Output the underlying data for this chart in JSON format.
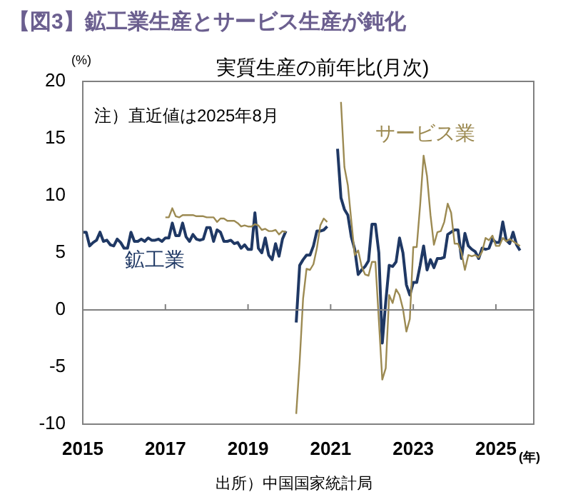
{
  "chart_data": {
    "type": "line",
    "title": "【図3】鉱工業生産とサービス生産が鈍化",
    "subtitle": "実質生産の前年比(月次)",
    "ylabel": "(%)",
    "xlabel": "(年)",
    "annotations": [
      "注）直近値は2025年8月",
      "出所）中国国家統計局"
    ],
    "x": [
      "2015-01",
      "2015-02",
      "2015-03",
      "2015-04",
      "2015-05",
      "2015-06",
      "2015-07",
      "2015-08",
      "2015-09",
      "2015-10",
      "2015-11",
      "2015-12",
      "2016-01",
      "2016-02",
      "2016-03",
      "2016-04",
      "2016-05",
      "2016-06",
      "2016-07",
      "2016-08",
      "2016-09",
      "2016-10",
      "2016-11",
      "2016-12",
      "2017-01",
      "2017-02",
      "2017-03",
      "2017-04",
      "2017-05",
      "2017-06",
      "2017-07",
      "2017-08",
      "2017-09",
      "2017-10",
      "2017-11",
      "2017-12",
      "2018-01",
      "2018-02",
      "2018-03",
      "2018-04",
      "2018-05",
      "2018-06",
      "2018-07",
      "2018-08",
      "2018-09",
      "2018-10",
      "2018-11",
      "2018-12",
      "2019-01",
      "2019-02",
      "2019-03",
      "2019-04",
      "2019-05",
      "2019-06",
      "2019-07",
      "2019-08",
      "2019-09",
      "2019-10",
      "2019-11",
      "2019-12",
      "2020-01",
      "2020-02",
      "2020-03",
      "2020-04",
      "2020-05",
      "2020-06",
      "2020-07",
      "2020-08",
      "2020-09",
      "2020-10",
      "2020-11",
      "2020-12",
      "2021-01",
      "2021-02",
      "2021-03",
      "2021-04",
      "2021-05",
      "2021-06",
      "2021-07",
      "2021-08",
      "2021-09",
      "2021-10",
      "2021-11",
      "2021-12",
      "2022-01",
      "2022-02",
      "2022-03",
      "2022-04",
      "2022-05",
      "2022-06",
      "2022-07",
      "2022-08",
      "2022-09",
      "2022-10",
      "2022-11",
      "2022-12",
      "2023-01",
      "2023-02",
      "2023-03",
      "2023-04",
      "2023-05",
      "2023-06",
      "2023-07",
      "2023-08",
      "2023-09",
      "2023-10",
      "2023-11",
      "2023-12",
      "2024-01",
      "2024-02",
      "2024-03",
      "2024-04",
      "2024-05",
      "2024-06",
      "2024-07",
      "2024-08",
      "2024-09",
      "2024-10",
      "2024-11",
      "2024-12",
      "2025-01",
      "2025-02",
      "2025-03",
      "2025-04",
      "2025-05",
      "2025-06",
      "2025-07",
      "2025-08"
    ],
    "series": [
      {
        "name": "鉱工業",
        "color": "#1f3864",
        "values": [
          6.8,
          6.8,
          5.6,
          5.9,
          6.1,
          6.8,
          6.0,
          6.1,
          5.7,
          5.6,
          6.2,
          5.9,
          5.4,
          5.4,
          6.8,
          6.0,
          6.0,
          6.2,
          6.0,
          6.3,
          6.1,
          6.1,
          6.2,
          6.0,
          6.3,
          6.3,
          7.6,
          6.5,
          6.5,
          7.6,
          6.4,
          6.0,
          6.6,
          6.2,
          6.1,
          6.2,
          7.2,
          7.2,
          6.0,
          7.0,
          6.8,
          6.0,
          6.0,
          6.1,
          5.8,
          5.9,
          5.4,
          5.7,
          5.3,
          5.3,
          8.5,
          5.4,
          5.0,
          6.3,
          4.8,
          4.4,
          5.8,
          4.7,
          6.2,
          6.9,
          null,
          null,
          -1.1,
          3.9,
          4.4,
          4.8,
          4.8,
          5.6,
          6.9,
          6.9,
          7.0,
          7.3,
          null,
          null,
          14.1,
          9.8,
          8.8,
          8.3,
          6.4,
          5.3,
          3.1,
          3.5,
          3.8,
          4.3,
          7.5,
          7.5,
          5.0,
          -2.9,
          0.7,
          3.9,
          3.8,
          4.2,
          6.3,
          5.0,
          2.2,
          1.3,
          2.4,
          2.4,
          3.9,
          5.6,
          3.5,
          4.4,
          3.7,
          4.5,
          4.5,
          4.6,
          6.6,
          6.8,
          7.0,
          7.0,
          4.5,
          6.7,
          5.6,
          5.3,
          5.1,
          4.5,
          5.4,
          5.3,
          5.4,
          6.2,
          5.9,
          5.9,
          7.7,
          6.1,
          5.8,
          6.8,
          5.7,
          5.2
        ]
      },
      {
        "name": "サービス業",
        "color": "#9c8a52",
        "values": [
          null,
          null,
          null,
          null,
          null,
          null,
          null,
          null,
          null,
          null,
          null,
          null,
          null,
          null,
          null,
          null,
          null,
          null,
          null,
          null,
          null,
          null,
          null,
          null,
          8.1,
          8.1,
          8.9,
          8.2,
          8.1,
          8.3,
          8.3,
          8.3,
          8.3,
          8.2,
          8.2,
          8.2,
          8.1,
          8.1,
          8.1,
          7.7,
          8.0,
          8.0,
          7.8,
          7.8,
          7.8,
          7.6,
          7.3,
          7.4,
          7.3,
          7.3,
          7.5,
          7.4,
          7.0,
          7.1,
          6.9,
          6.9,
          7.0,
          6.6,
          6.9,
          6.8,
          null,
          null,
          -9.1,
          -4.5,
          1.0,
          3.6,
          3.5,
          4.0,
          5.4,
          7.4,
          8.0,
          7.7,
          null,
          null,
          null,
          18.2,
          12.5,
          10.9,
          7.8,
          4.8,
          5.2,
          3.8,
          3.1,
          3.0,
          4.2,
          4.2,
          -0.9,
          -6.1,
          -5.1,
          1.3,
          0.6,
          1.8,
          1.3,
          0.1,
          -1.9,
          -0.8,
          5.5,
          5.5,
          9.2,
          13.5,
          11.7,
          8.3,
          5.7,
          6.8,
          6.9,
          7.7,
          9.3,
          8.5,
          5.8,
          5.8,
          5.0,
          3.5,
          4.8,
          4.7,
          4.8,
          4.6,
          5.1,
          6.3,
          6.1,
          6.5,
          5.6,
          5.6,
          6.3,
          6.0,
          6.2,
          6.0,
          5.8,
          5.6
        ]
      }
    ],
    "xlim": [
      "2015-01",
      "2025-12"
    ],
    "xticks": [
      "2015",
      "2017",
      "2019",
      "2021",
      "2023",
      "2025"
    ],
    "ylim": [
      -10,
      20
    ],
    "yticks": [
      -10,
      -5,
      0,
      5,
      10,
      15,
      20
    ],
    "ref_lines": [
      {
        "axis": "y",
        "value": 0,
        "color": "#808080"
      }
    ],
    "grid": false,
    "legend": false,
    "marker": "none",
    "line_style": "solid"
  }
}
